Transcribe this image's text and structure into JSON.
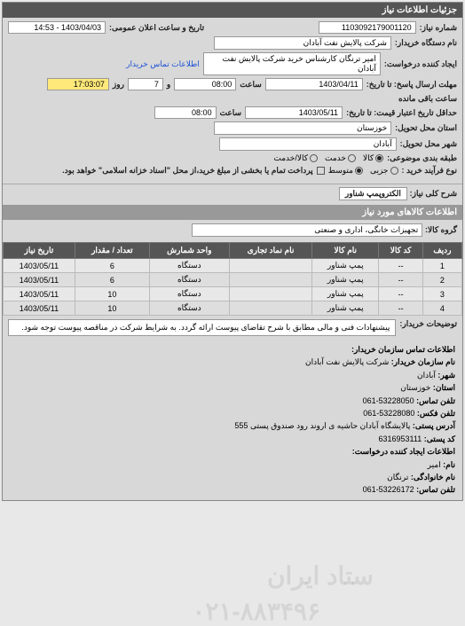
{
  "panel_title": "جزئیات اطلاعات نیاز",
  "labels": {
    "need_no": "شماره نیاز:",
    "datetime_public": "تاریخ و ساعت اعلان عمومی:",
    "buyer_org": "نام دستگاه خریدار:",
    "creator": "ایجاد کننده درخواست:",
    "contact_link": "اطلاعات تماس خریدار",
    "reply_deadline": "مهلت ارسال پاسخ: تا تاریخ:",
    "saat": "ساعت",
    "va": "و",
    "rooz": "روز",
    "remain": "ساعت باقی مانده",
    "price_valid": "حداقل تاریخ اعتبار قیمت: تا تاریخ:",
    "province": "استان محل تحویل:",
    "city": "شهر محل تحویل:",
    "category": "طبقه بندی موضوعی:",
    "process_type": "نوع فرآیند خرید :",
    "payment_note": "پرداخت تمام یا بخشی از مبلغ خرید،از محل \"اسناد خزانه اسلامی\" خواهد بود.",
    "general_desc": "شرح کلی نیاز:",
    "goods_info": "اطلاعات کالاهای مورد نیاز",
    "goods_group": "گروه کالا:",
    "buyer_notes": "توضیحات خریدار:",
    "contact_header": "اطلاعات تماس سازمان خریدار:",
    "org_name": "نام سازمان خریدار:",
    "city2": "شهر:",
    "province2": "استان:",
    "tel": "تلفن تماس:",
    "fax": "تلفن فکس:",
    "postal_addr": "آدرس پستی:",
    "postal_code": "کد پستی:",
    "requester_header": "اطلاعات ایجاد کننده درخواست:",
    "name": "نام:",
    "family": "نام خانوادگی:",
    "tel2": "تلفن تماس:"
  },
  "values": {
    "need_no": "1103092179001120",
    "public_dt": "1403/04/03 - 14:53",
    "buyer_org": "شرکت پالایش نفت آبادان",
    "creator": "امیر ترنگان کارشناس خرید شرکت پالایش نفت آبادان",
    "reply_date": "1403/04/11",
    "reply_time": "08:00",
    "days": "7",
    "remain_time": "17:03:07",
    "price_date": "1403/05/11",
    "price_time": "08:00",
    "province": "خوزستان",
    "city": "آبادان",
    "general_desc": "الکتروپمپ شناور",
    "goods_group": "تجهیزات خانگی، اداری و صنعتی",
    "buyer_notes": "پیشنهادات فنی و مالی مطابق با شرح تقاضای پیوست ارائه گردد. به شرایط شرکت در مناقصه پیوست توجه شود.",
    "org_name_v": "شرکت پالایش نفت آبادان",
    "city_v": "آبادان",
    "province_v": "خوزستان",
    "tel_v": "53228050-061",
    "fax_v": "53228080-061",
    "postal_addr_v": "پالایشگاه آبادان حاشیه ی اروند رود صندوق پستی 555",
    "postal_code_v": "6316953111",
    "name_v": "امیر",
    "family_v": "ترنگان",
    "tel2_v": "53226172-061"
  },
  "category_options": [
    {
      "label": "کالا",
      "checked": true
    },
    {
      "label": "خدمت",
      "checked": false
    },
    {
      "label": "کالا/خدمت",
      "checked": false
    }
  ],
  "process_options": [
    {
      "label": "جزیی",
      "checked": false
    },
    {
      "label": "متوسط",
      "checked": true
    }
  ],
  "table": {
    "headers": [
      "ردیف",
      "کد کالا",
      "نام کالا",
      "نام نماد تجاری",
      "واحد شمارش",
      "تعداد / مقدار",
      "تاریخ نیاز"
    ],
    "rows": [
      [
        "1",
        "--",
        "پمپ شناور",
        "",
        "دستگاه",
        "6",
        "1403/05/11"
      ],
      [
        "2",
        "--",
        "پمپ شناور",
        "",
        "دستگاه",
        "6",
        "1403/05/11"
      ],
      [
        "3",
        "--",
        "پمپ شناور",
        "",
        "دستگاه",
        "10",
        "1403/05/11"
      ],
      [
        "4",
        "--",
        "پمپ شناور",
        "",
        "دستگاه",
        "10",
        "1403/05/11"
      ]
    ]
  },
  "watermark": {
    "line1": "ستاد ایران",
    "line2": "۰۲۱-۸۸۳۴۹۶"
  }
}
